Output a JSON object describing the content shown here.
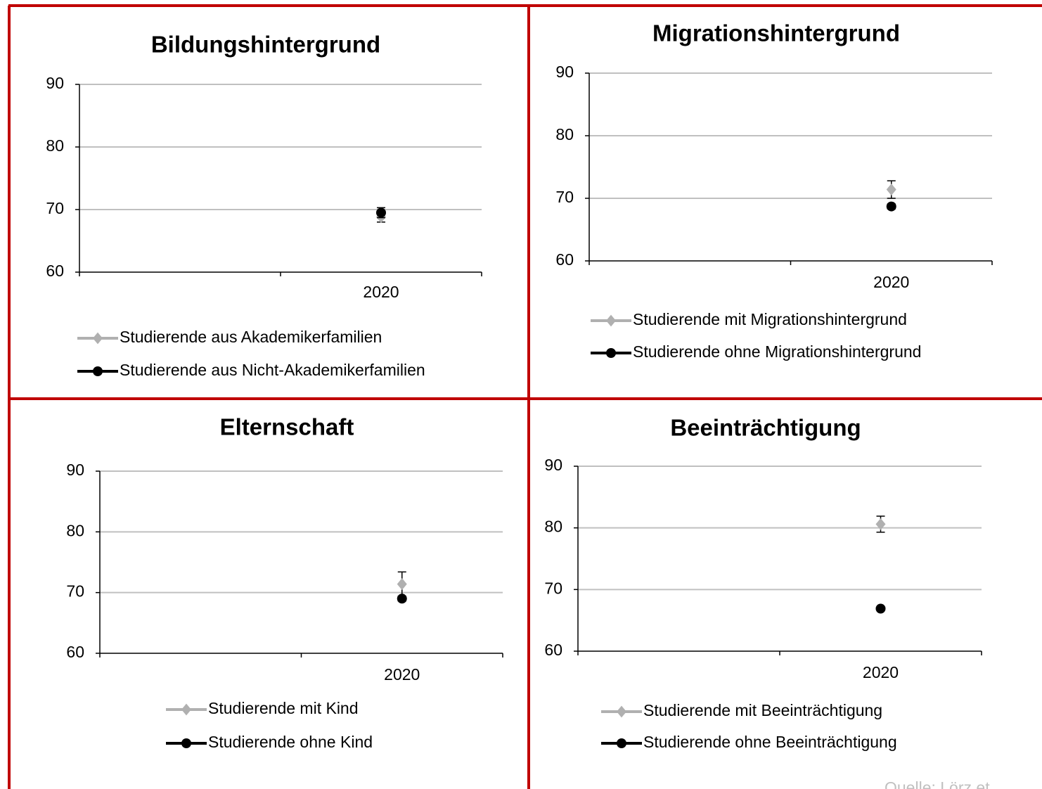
{
  "charts": [
    {
      "chart_data": {
        "type": "line",
        "title": "Bildungshintergrund",
        "categories": [
          null,
          "2020"
        ],
        "ylim": [
          60,
          90
        ],
        "yticks": [
          60,
          70,
          80,
          90
        ],
        "grid": true,
        "series": [
          {
            "name": "Studierende aus Akademikerfamilien",
            "color": "#b0b0b0",
            "marker": "diamond",
            "values": [
              null,
              68.8
            ],
            "errors": [
              null,
              0.8
            ]
          },
          {
            "name": "Studierende aus Nicht-Akademikerfamilien",
            "color": "#000000",
            "marker": "circle",
            "values": [
              null,
              69.5
            ],
            "errors": [
              null,
              0.8
            ]
          }
        ]
      }
    },
    {
      "chart_data": {
        "type": "line",
        "title": "Migrationshintergrund",
        "categories": [
          null,
          "2020"
        ],
        "ylim": [
          60,
          90
        ],
        "yticks": [
          60,
          70,
          80,
          90
        ],
        "grid": true,
        "series": [
          {
            "name": "Studierende mit Migrationshintergrund",
            "color": "#b0b0b0",
            "marker": "diamond",
            "values": [
              null,
              71.4
            ],
            "errors": [
              null,
              1.4
            ]
          },
          {
            "name": "Studierende ohne Migrationshintergrund",
            "color": "#000000",
            "marker": "circle",
            "values": [
              null,
              68.7
            ],
            "errors": [
              null,
              0.4
            ]
          }
        ]
      }
    },
    {
      "chart_data": {
        "type": "line",
        "title": "Elternschaft",
        "categories": [
          null,
          "2020"
        ],
        "ylim": [
          60,
          90
        ],
        "yticks": [
          60,
          70,
          80,
          90
        ],
        "grid": true,
        "series": [
          {
            "name": "Studierende mit Kind",
            "color": "#b0b0b0",
            "marker": "diamond",
            "values": [
              null,
              71.4
            ],
            "errors": [
              null,
              2.0
            ]
          },
          {
            "name": "Studierende ohne Kind",
            "color": "#000000",
            "marker": "circle",
            "values": [
              null,
              69.0
            ],
            "errors": [
              null,
              0.4
            ]
          }
        ]
      }
    },
    {
      "chart_data": {
        "type": "line",
        "title": "Beeinträchtigung",
        "categories": [
          null,
          "2020"
        ],
        "ylim": [
          60,
          90
        ],
        "yticks": [
          60,
          70,
          80,
          90
        ],
        "grid": true,
        "series": [
          {
            "name": "Studierende mit Beeinträchtigung",
            "color": "#b0b0b0",
            "marker": "diamond",
            "values": [
              null,
              80.6
            ],
            "errors": [
              null,
              1.3
            ]
          },
          {
            "name": "Studierende ohne Beeinträchtigung",
            "color": "#000000",
            "marker": "circle",
            "values": [
              null,
              66.9
            ],
            "errors": [
              null,
              0.3
            ]
          }
        ]
      }
    }
  ],
  "source": "Quelle: Lörz et"
}
